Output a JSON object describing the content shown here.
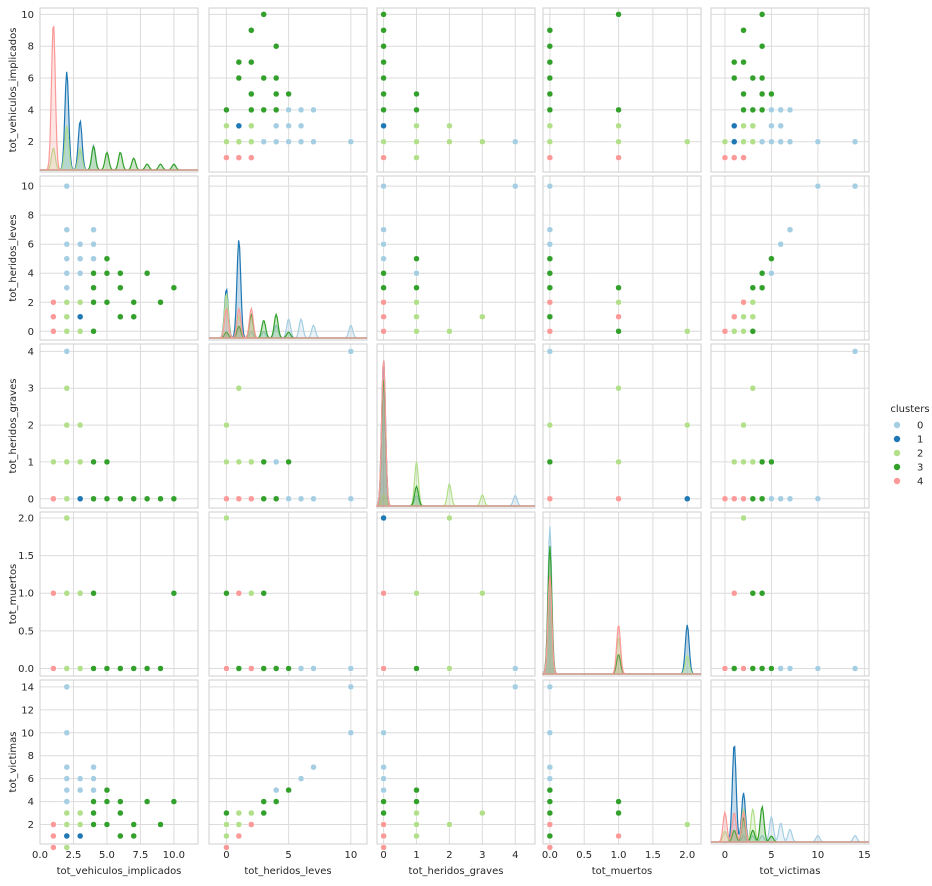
{
  "chart_data": {
    "type": "scatter",
    "kind": "pairplot",
    "grid": true,
    "legend_position": "right",
    "variables": [
      "tot_vehiculos_implicados",
      "tot_heridos_leves",
      "tot_heridos_graves",
      "tot_muertos",
      "tot_victimas"
    ],
    "x_ticks": [
      [
        0.0,
        2.5,
        5.0,
        7.5,
        10.0
      ],
      [
        0,
        5,
        10
      ],
      [
        0,
        1,
        2,
        3,
        4
      ],
      [
        0.0,
        0.5,
        1.0,
        1.5,
        2.0
      ],
      [
        0,
        5,
        10,
        15
      ]
    ],
    "x_tick_labels": [
      [
        "0.0",
        "2.5",
        "5.0",
        "7.5",
        "10.0"
      ],
      [
        "0",
        "5",
        "10"
      ],
      [
        "0",
        "1",
        "2",
        "3",
        "4"
      ],
      [
        "0.0",
        "0.5",
        "1.0",
        "1.5",
        "2.0"
      ],
      [
        "0",
        "5",
        "10",
        "15"
      ]
    ],
    "y_ticks": [
      [
        2,
        4,
        6,
        8,
        10
      ],
      [
        0,
        2,
        4,
        6,
        8,
        10
      ],
      [
        0,
        1,
        2,
        3,
        4
      ],
      [
        0.0,
        0.5,
        1.0,
        1.5,
        2.0
      ],
      [
        2,
        4,
        6,
        8,
        10,
        12,
        14
      ]
    ],
    "y_tick_labels": [
      [
        "2",
        "4",
        "6",
        "8",
        "10"
      ],
      [
        "0",
        "2",
        "4",
        "6",
        "8",
        "10"
      ],
      [
        "0",
        "1",
        "2",
        "3",
        "4"
      ],
      [
        "0.0",
        "0.5",
        "1.0",
        "1.5",
        "2.0"
      ],
      [
        "2",
        "4",
        "6",
        "8",
        "10",
        "12",
        "14"
      ]
    ],
    "x_ranges": [
      [
        0,
        11.8
      ],
      [
        -1.4,
        11.3
      ],
      [
        -0.2,
        4.6
      ],
      [
        -0.1,
        2.2
      ],
      [
        -1.5,
        15.5
      ]
    ],
    "y_ranges": [
      [
        0.1,
        10.4
      ],
      [
        -0.6,
        10.7
      ],
      [
        -0.25,
        4.2
      ],
      [
        -0.1,
        2.08
      ],
      [
        0.3,
        14.6
      ]
    ],
    "legend": {
      "title": "clusters",
      "labels": [
        "0",
        "1",
        "2",
        "3",
        "4"
      ]
    },
    "colors": [
      "#a6cee3",
      "#1f78b4",
      "#b2df8a",
      "#33a02c",
      "#fb9a99"
    ],
    "points": [
      {
        "c": 0,
        "v": [
          2,
          4,
          0,
          0,
          4
        ]
      },
      {
        "c": 0,
        "v": [
          2,
          5,
          0,
          0,
          5
        ]
      },
      {
        "c": 0,
        "v": [
          2,
          6,
          0,
          0,
          6
        ]
      },
      {
        "c": 0,
        "v": [
          2,
          7,
          0,
          0,
          7
        ]
      },
      {
        "c": 0,
        "v": [
          2,
          10,
          4,
          0,
          14
        ]
      },
      {
        "c": 0,
        "v": [
          2,
          10,
          0,
          0,
          10
        ]
      },
      {
        "c": 0,
        "v": [
          3,
          5,
          0,
          0,
          5
        ]
      },
      {
        "c": 0,
        "v": [
          3,
          6,
          0,
          0,
          6
        ]
      },
      {
        "c": 0,
        "v": [
          3,
          4,
          1,
          0,
          5
        ]
      },
      {
        "c": 0,
        "v": [
          4,
          7,
          0,
          0,
          7
        ]
      },
      {
        "c": 0,
        "v": [
          4,
          6,
          0,
          0,
          6
        ]
      },
      {
        "c": 0,
        "v": [
          4,
          5,
          0,
          0,
          5
        ]
      },
      {
        "c": 0,
        "v": [
          2,
          3,
          0,
          0,
          3
        ]
      },
      {
        "c": 0,
        "v": [
          4,
          2,
          0,
          0,
          2
        ]
      },
      {
        "c": 1,
        "v": [
          2,
          1,
          0,
          0,
          1
        ]
      },
      {
        "c": 1,
        "v": [
          2,
          0,
          0,
          2,
          2
        ]
      },
      {
        "c": 1,
        "v": [
          3,
          1,
          0,
          0,
          1
        ]
      },
      {
        "c": 2,
        "v": [
          1,
          0,
          1,
          0,
          1
        ]
      },
      {
        "c": 2,
        "v": [
          2,
          0,
          2,
          2,
          2
        ]
      },
      {
        "c": 2,
        "v": [
          2,
          1,
          3,
          1,
          3
        ]
      },
      {
        "c": 2,
        "v": [
          2,
          2,
          1,
          0,
          3
        ]
      },
      {
        "c": 2,
        "v": [
          1,
          1,
          1,
          0,
          2
        ]
      },
      {
        "c": 2,
        "v": [
          3,
          0,
          2,
          0,
          2
        ]
      },
      {
        "c": 2,
        "v": [
          3,
          2,
          1,
          1,
          3
        ]
      },
      {
        "c": 2,
        "v": [
          2,
          0,
          0,
          0,
          0
        ]
      },
      {
        "c": 3,
        "v": [
          4,
          3,
          1,
          0,
          4
        ]
      },
      {
        "c": 3,
        "v": [
          5,
          5,
          1,
          0,
          5
        ]
      },
      {
        "c": 3,
        "v": [
          5,
          4,
          0,
          0,
          4
        ]
      },
      {
        "c": 3,
        "v": [
          6,
          4,
          0,
          0,
          4
        ]
      },
      {
        "c": 3,
        "v": [
          8,
          4,
          0,
          0,
          4
        ]
      },
      {
        "c": 3,
        "v": [
          10,
          3,
          0,
          1,
          4
        ]
      },
      {
        "c": 3,
        "v": [
          9,
          2,
          0,
          0,
          2
        ]
      },
      {
        "c": 3,
        "v": [
          7,
          2,
          0,
          0,
          2
        ]
      },
      {
        "c": 3,
        "v": [
          5,
          2,
          0,
          0,
          2
        ]
      },
      {
        "c": 3,
        "v": [
          4,
          2,
          0,
          0,
          2
        ]
      },
      {
        "c": 3,
        "v": [
          6,
          3,
          0,
          0,
          3
        ]
      },
      {
        "c": 3,
        "v": [
          7,
          1,
          0,
          0,
          1
        ]
      },
      {
        "c": 3,
        "v": [
          4,
          0,
          0,
          1,
          3
        ]
      },
      {
        "c": 3,
        "v": [
          6,
          1,
          0,
          0,
          1
        ]
      },
      {
        "c": 3,
        "v": [
          4,
          4,
          0,
          0,
          4
        ]
      },
      {
        "c": 4,
        "v": [
          1,
          1,
          0,
          1,
          1
        ]
      },
      {
        "c": 4,
        "v": [
          1,
          2,
          0,
          0,
          2
        ]
      },
      {
        "c": 4,
        "v": [
          1,
          0,
          0,
          0,
          0
        ]
      }
    ]
  }
}
